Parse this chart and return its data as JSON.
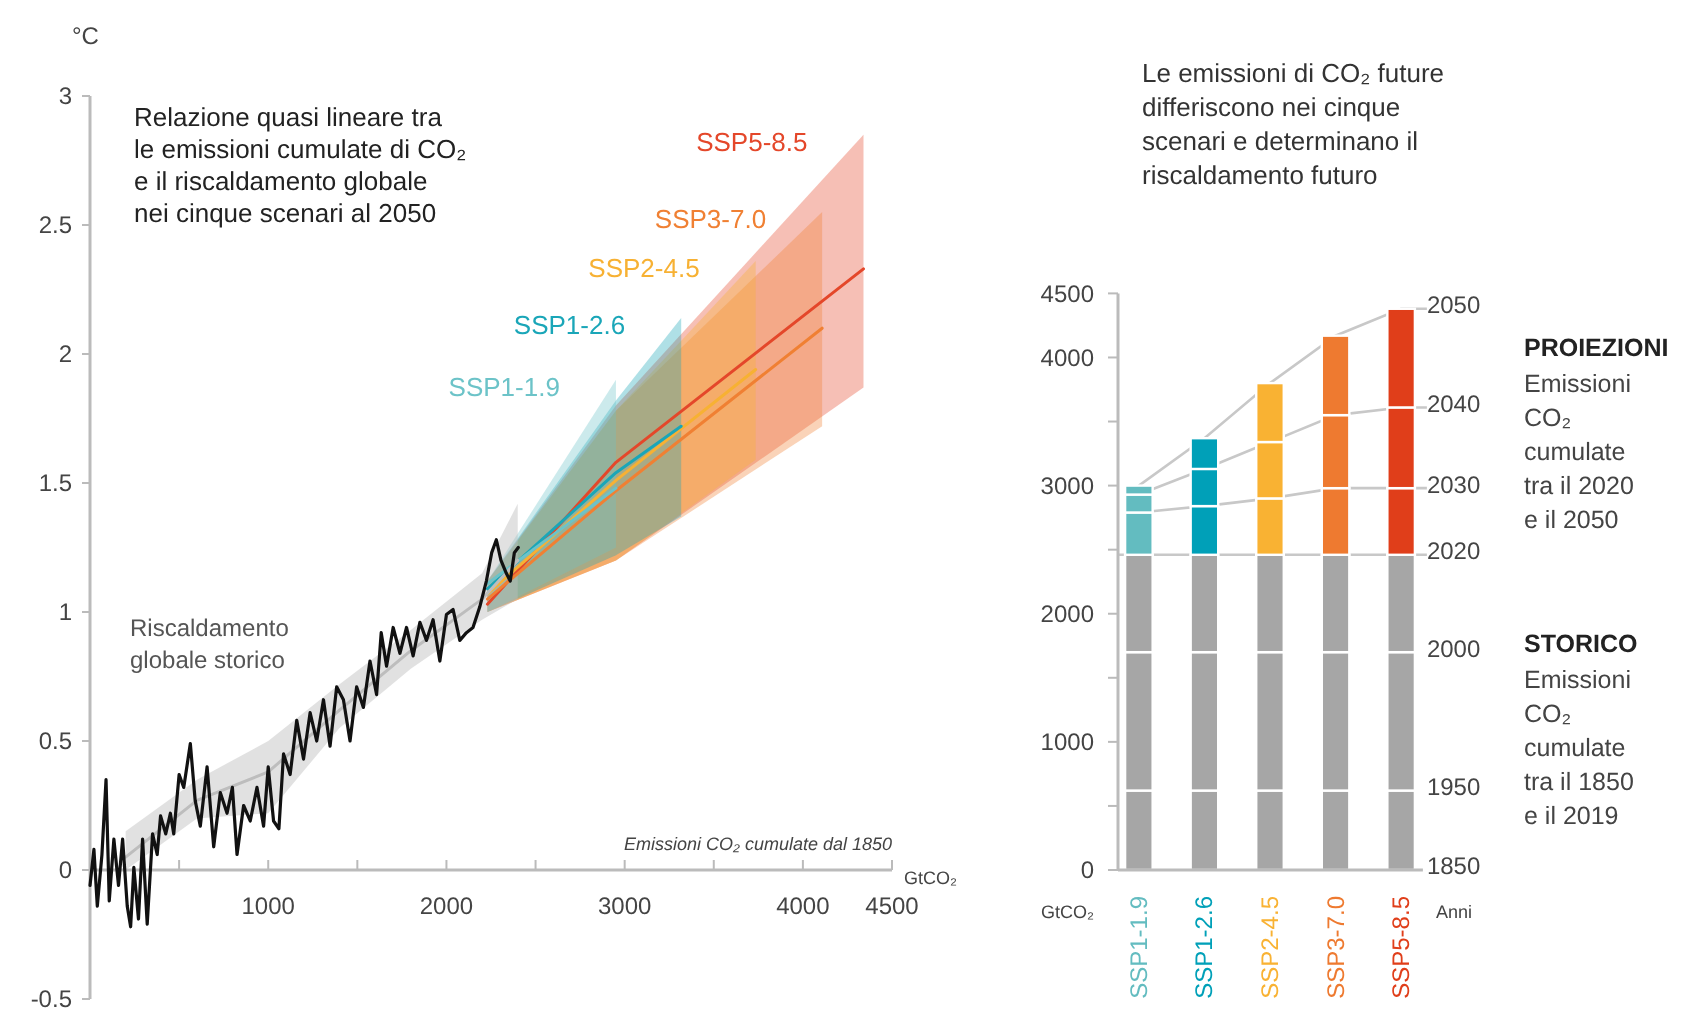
{
  "chart_data": [
    {
      "type": "line",
      "title": "Relazione quasi lineare tra le emissioni cumulate di CO₂ e il riscaldamento globale nei cinque scenari al 2050",
      "xlabel": "Emissioni CO₂ cumulate dal 1850",
      "ylabel": "°C",
      "annotations": [
        "GtCO₂"
      ],
      "xlim": [
        0,
        4500
      ],
      "ylim": [
        -0.5,
        3
      ],
      "xticks": [
        {
          "value": 500,
          "label": null
        },
        1000,
        {
          "value": 1500,
          "label": null
        },
        2000,
        {
          "value": 2500,
          "label": null
        },
        3000,
        {
          "value": 3500,
          "label": null
        },
        4000,
        4500
      ],
      "yticks": [
        -0.5,
        0,
        0.5,
        1,
        1.5,
        2,
        2.5,
        3
      ],
      "grid": false,
      "marker": "none",
      "line_style": "solid",
      "series": [
        {
          "name": "Riscaldamento globale storico",
          "color": "#111111",
          "x": [
            0,
            22,
            41,
            67,
            90,
            108,
            134,
            160,
            183,
            209,
            228,
            246,
            272,
            295,
            321,
            351,
            377,
            396,
            425,
            451,
            470,
            500,
            526,
            563,
            590,
            619,
            657,
            694,
            731,
            769,
            799,
            825,
            862,
            899,
            937,
            974,
            1000,
            1030,
            1060,
            1086,
            1123,
            1160,
            1198,
            1235,
            1272,
            1310,
            1347,
            1384,
            1422,
            1459,
            1496,
            1534,
            1571,
            1608,
            1634,
            1664,
            1701,
            1739,
            1776,
            1813,
            1851,
            1888,
            1925,
            1963,
            2000,
            2037,
            2075,
            2112,
            2149,
            2187,
            2224,
            2254,
            2280,
            2306,
            2336,
            2358,
            2381,
            2403
          ],
          "values": [
            -0.06,
            0.08,
            -0.14,
            0.06,
            0.35,
            -0.12,
            0.12,
            -0.06,
            0.12,
            -0.14,
            -0.22,
            0.01,
            -0.19,
            0.12,
            -0.21,
            0.14,
            0.06,
            0.21,
            0.14,
            0.22,
            0.14,
            0.37,
            0.32,
            0.49,
            0.27,
            0.17,
            0.4,
            0.09,
            0.3,
            0.22,
            0.32,
            0.06,
            0.25,
            0.19,
            0.32,
            0.17,
            0.4,
            0.19,
            0.16,
            0.45,
            0.37,
            0.58,
            0.43,
            0.61,
            0.5,
            0.66,
            0.48,
            0.71,
            0.66,
            0.5,
            0.71,
            0.63,
            0.81,
            0.68,
            0.92,
            0.79,
            0.94,
            0.84,
            0.94,
            0.83,
            0.96,
            0.89,
            0.97,
            0.81,
            0.99,
            1.01,
            0.89,
            0.92,
            0.94,
            1.02,
            1.12,
            1.23,
            1.28,
            1.2,
            1.15,
            1.12,
            1.23,
            1.25
          ]
        },
        {
          "color": "#bdbdbd",
          "x": [
            200,
            600,
            1000,
            1400,
            1800,
            2200,
            2400
          ],
          "values": [
            0.05,
            0.27,
            0.38,
            0.62,
            0.85,
            1.05,
            1.2
          ],
          "lower": [
            0,
            0.2,
            0.22,
            0.55,
            0.78,
            0.97,
            1.05
          ],
          "upper": [
            0.15,
            0.35,
            0.5,
            0.72,
            0.93,
            1.15,
            1.42
          ]
        },
        {
          "name": "SSP1-1.9",
          "color": "#6cc3c8",
          "x": [
            2230,
            2951
          ],
          "values": [
            1.11,
            1.48
          ],
          "lower": [
            1.0,
            1.25
          ],
          "upper": [
            1.12,
            1.9
          ]
        },
        {
          "name": "SSP1-2.6",
          "color": "#1aa6b8",
          "x": [
            2230,
            2951,
            3317
          ],
          "values": [
            1.09,
            1.54,
            1.72
          ],
          "lower": [
            1.0,
            1.22,
            1.37
          ],
          "upper": [
            1.12,
            1.82,
            2.14
          ]
        },
        {
          "name": "SSP2-4.5",
          "color": "#f7b133",
          "x": [
            2230,
            2951,
            3735
          ],
          "values": [
            1.07,
            1.51,
            1.94
          ],
          "lower": [
            1.0,
            1.2,
            1.59
          ],
          "upper": [
            1.12,
            1.78,
            2.36
          ]
        },
        {
          "name": "SSP3-7.0",
          "color": "#f08033",
          "x": [
            2230,
            2951,
            4108
          ],
          "values": [
            1.05,
            1.47,
            2.1
          ],
          "lower": [
            1.0,
            1.2,
            1.72
          ],
          "upper": [
            1.12,
            1.78,
            2.55
          ]
        },
        {
          "name": "SSP5-8.5",
          "color": "#e4472a",
          "x": [
            2230,
            2951,
            4340
          ],
          "values": [
            1.03,
            1.58,
            2.33
          ],
          "lower": [
            1.0,
            1.2,
            1.87
          ],
          "upper": [
            1.12,
            1.8,
            2.85
          ]
        }
      ]
    },
    {
      "type": "bar",
      "stacked": true,
      "title": "Le emissioni di CO₂ future differiscono nei cinque scenari e determinano il riscaldamento futuro",
      "ylabel": "GtCO₂",
      "annotations": [
        "PROIEZIONI",
        "Emissioni CO₂ cumulate tra il 2020 e il 2050",
        "STORICO",
        "Emissioni CO₂ cumulate tra il 1850 e il 2019",
        "Anni",
        {
          "text": "1850",
          "x": "SSP5-8.5",
          "y": 0
        },
        {
          "text": "1950",
          "x": "SSP5-8.5",
          "y": 620
        },
        {
          "text": "2000",
          "x": "SSP5-8.5",
          "y": 1700
        },
        {
          "text": "2020",
          "x": "SSP5-8.5",
          "y": 2460
        },
        {
          "text": "2030",
          "x": "SSP5-8.5",
          "y": 2980
        },
        {
          "text": "2040",
          "x": "SSP5-8.5",
          "y": 3610
        },
        {
          "text": "2050",
          "x": "SSP5-8.5",
          "y": 4380
        }
      ],
      "categories": [
        "SSP1-1.9",
        "SSP1-2.6",
        "SSP2-4.5",
        "SSP3-7.0",
        "SSP5-8.5"
      ],
      "ylim": [
        0,
        4500
      ],
      "yticks": [
        0,
        {
          "value": 500,
          "label": null
        },
        1000,
        {
          "value": 1500,
          "label": null
        },
        2000,
        {
          "value": 2500,
          "label": null
        },
        3000,
        {
          "value": 3500,
          "label": null
        },
        4000,
        4500
      ],
      "grid": false,
      "ref_lines": [
        {
          "axis": "y",
          "value": 2460,
          "color": "#c8c8c8"
        }
      ],
      "series": [
        {
          "color": "#a6a6a6",
          "values": [
            620,
            620,
            620,
            620,
            620
          ]
        },
        {
          "color": "#a6a6a6",
          "values": [
            1080,
            1080,
            1080,
            1080,
            1080
          ]
        },
        {
          "color": "#a6a6a6",
          "values": [
            760,
            760,
            760,
            760,
            760
          ]
        },
        {
          "colors": [
            "#63bcc0",
            "#00a0b8",
            "#f9b233",
            "#ee7a30",
            "#e03e1a"
          ],
          "values": [
            330,
            380,
            440,
            520,
            520
          ]
        },
        {
          "colors": [
            "#63bcc0",
            "#00a0b8",
            "#f9b233",
            "#ee7a30",
            "#e03e1a"
          ],
          "values": [
            140,
            290,
            440,
            570,
            630
          ]
        },
        {
          "colors": [
            "#63bcc0",
            "#00a0b8",
            "#f9b233",
            "#ee7a30",
            "#e03e1a"
          ],
          "values": [
            70,
            240,
            460,
            620,
            770
          ]
        }
      ]
    }
  ]
}
